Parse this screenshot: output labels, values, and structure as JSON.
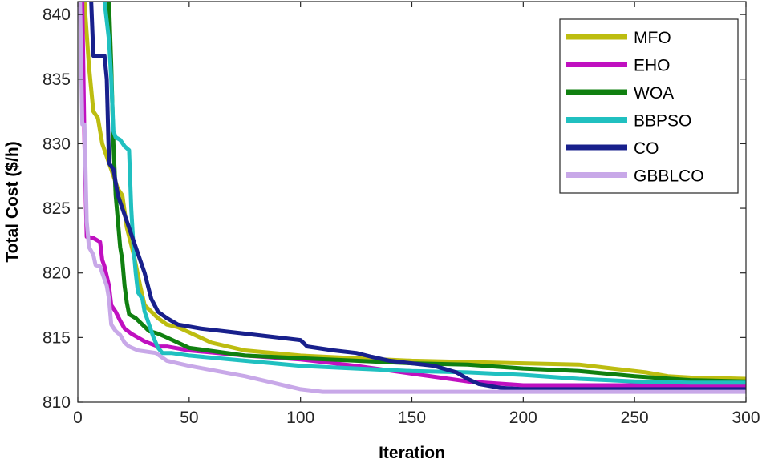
{
  "chart_data": {
    "type": "line",
    "title": "",
    "xlabel": "Iteration",
    "ylabel": "Total Cost ($/h)",
    "xlim": [
      0,
      300
    ],
    "ylim": [
      810,
      841
    ],
    "xticks": [
      0,
      50,
      100,
      150,
      200,
      250,
      300
    ],
    "yticks": [
      810,
      815,
      820,
      825,
      830,
      835,
      840
    ],
    "grid": false,
    "legend_position": "top-right",
    "series": [
      {
        "name": "MFO",
        "color": "#BDBD10",
        "points": [
          [
            3,
            841
          ],
          [
            5,
            836
          ],
          [
            7,
            832.5
          ],
          [
            9,
            832
          ],
          [
            11,
            830
          ],
          [
            13,
            829
          ],
          [
            15,
            828
          ],
          [
            18,
            826.5
          ],
          [
            20,
            826
          ],
          [
            22,
            823.5
          ],
          [
            25,
            821.5
          ],
          [
            28,
            819
          ],
          [
            30,
            817.5
          ],
          [
            33,
            817
          ],
          [
            36,
            816.5
          ],
          [
            40,
            816
          ],
          [
            45,
            815.8
          ],
          [
            50,
            815.4
          ],
          [
            60,
            814.6
          ],
          [
            75,
            814
          ],
          [
            100,
            813.6
          ],
          [
            125,
            813.4
          ],
          [
            150,
            813.2
          ],
          [
            175,
            813.1
          ],
          [
            200,
            813
          ],
          [
            225,
            812.9
          ],
          [
            240,
            812.6
          ],
          [
            255,
            812.3
          ],
          [
            265,
            812
          ],
          [
            275,
            811.9
          ],
          [
            300,
            811.8
          ]
        ]
      },
      {
        "name": "EHO",
        "color": "#C010C0",
        "points": [
          [
            2,
            841
          ],
          [
            3,
            830
          ],
          [
            4,
            822.8
          ],
          [
            7,
            822.7
          ],
          [
            10,
            822.4
          ],
          [
            11,
            821
          ],
          [
            12,
            820.5
          ],
          [
            14,
            819
          ],
          [
            15,
            817.5
          ],
          [
            17,
            817
          ],
          [
            19,
            816.3
          ],
          [
            21,
            815.7
          ],
          [
            24,
            815.3
          ],
          [
            27,
            815
          ],
          [
            30,
            814.7
          ],
          [
            33,
            814.5
          ],
          [
            36,
            814.3
          ],
          [
            40,
            814.3
          ],
          [
            50,
            814
          ],
          [
            75,
            813.6
          ],
          [
            100,
            813.3
          ],
          [
            125,
            812.8
          ],
          [
            150,
            812.2
          ],
          [
            175,
            811.6
          ],
          [
            200,
            811.3
          ],
          [
            225,
            811.3
          ],
          [
            250,
            811.3
          ],
          [
            275,
            811.3
          ],
          [
            300,
            811.3
          ]
        ]
      },
      {
        "name": "WOA",
        "color": "#108010",
        "points": [
          [
            14,
            841
          ],
          [
            15,
            836
          ],
          [
            16,
            830
          ],
          [
            17,
            826
          ],
          [
            18,
            824
          ],
          [
            19,
            822
          ],
          [
            20,
            821
          ],
          [
            21,
            819
          ],
          [
            22,
            817.7
          ],
          [
            23,
            816.8
          ],
          [
            26,
            816.5
          ],
          [
            29,
            816
          ],
          [
            32,
            815.5
          ],
          [
            36,
            815.3
          ],
          [
            40,
            815
          ],
          [
            50,
            814.2
          ],
          [
            75,
            813.6
          ],
          [
            100,
            813.4
          ],
          [
            125,
            813.2
          ],
          [
            150,
            813
          ],
          [
            175,
            812.9
          ],
          [
            200,
            812.6
          ],
          [
            225,
            812.4
          ],
          [
            250,
            812
          ],
          [
            275,
            811.7
          ],
          [
            300,
            811.6
          ]
        ]
      },
      {
        "name": "BBPSO",
        "color": "#20C0C0",
        "points": [
          [
            12,
            841
          ],
          [
            14,
            838
          ],
          [
            15,
            835
          ],
          [
            16,
            831
          ],
          [
            17,
            830.5
          ],
          [
            19,
            830.3
          ],
          [
            21,
            829.8
          ],
          [
            23,
            829.5
          ],
          [
            24,
            825
          ],
          [
            25,
            822
          ],
          [
            26,
            820
          ],
          [
            27,
            818.5
          ],
          [
            29,
            818
          ],
          [
            30,
            817
          ],
          [
            32,
            816
          ],
          [
            34,
            815
          ],
          [
            36,
            814.2
          ],
          [
            38,
            813.8
          ],
          [
            42,
            813.8
          ],
          [
            50,
            813.6
          ],
          [
            75,
            813.2
          ],
          [
            100,
            812.8
          ],
          [
            125,
            812.6
          ],
          [
            150,
            812.4
          ],
          [
            175,
            812.3
          ],
          [
            200,
            812.1
          ],
          [
            225,
            811.8
          ],
          [
            250,
            811.6
          ],
          [
            275,
            811.5
          ],
          [
            300,
            811.5
          ]
        ]
      },
      {
        "name": "CO",
        "color": "#18208C",
        "points": [
          [
            6,
            841
          ],
          [
            7,
            836.8
          ],
          [
            12,
            836.8
          ],
          [
            13,
            835
          ],
          [
            14,
            828.5
          ],
          [
            16,
            828
          ],
          [
            18,
            826
          ],
          [
            20,
            825
          ],
          [
            22,
            824
          ],
          [
            24,
            823
          ],
          [
            26,
            822
          ],
          [
            28,
            821
          ],
          [
            30,
            820
          ],
          [
            33,
            818
          ],
          [
            36,
            817
          ],
          [
            40,
            816.5
          ],
          [
            45,
            816
          ],
          [
            55,
            815.7
          ],
          [
            75,
            815.3
          ],
          [
            100,
            814.8
          ],
          [
            103,
            814.3
          ],
          [
            115,
            814
          ],
          [
            125,
            813.8
          ],
          [
            132,
            813.5
          ],
          [
            140,
            813.2
          ],
          [
            150,
            813
          ],
          [
            160,
            812.8
          ],
          [
            170,
            812.3
          ],
          [
            175,
            811.8
          ],
          [
            180,
            811.4
          ],
          [
            190,
            811.1
          ],
          [
            200,
            811
          ],
          [
            225,
            811
          ],
          [
            250,
            811
          ],
          [
            275,
            811
          ],
          [
            300,
            811
          ]
        ]
      },
      {
        "name": "GBBLCO",
        "color": "#C8A8E8",
        "points": [
          [
            1,
            841
          ],
          [
            2,
            831.5
          ],
          [
            3,
            831.5
          ],
          [
            4,
            824
          ],
          [
            5,
            822
          ],
          [
            7,
            821.4
          ],
          [
            8,
            820.6
          ],
          [
            10,
            820.5
          ],
          [
            11,
            820
          ],
          [
            13,
            819
          ],
          [
            14,
            818
          ],
          [
            15,
            816
          ],
          [
            17,
            815.5
          ],
          [
            19,
            815.2
          ],
          [
            21,
            814.6
          ],
          [
            23,
            814.3
          ],
          [
            27,
            814
          ],
          [
            35,
            813.8
          ],
          [
            40,
            813.2
          ],
          [
            50,
            812.8
          ],
          [
            75,
            812
          ],
          [
            100,
            811
          ],
          [
            110,
            810.8
          ],
          [
            150,
            810.8
          ],
          [
            200,
            810.8
          ],
          [
            250,
            810.8
          ],
          [
            300,
            810.8
          ]
        ]
      }
    ]
  }
}
